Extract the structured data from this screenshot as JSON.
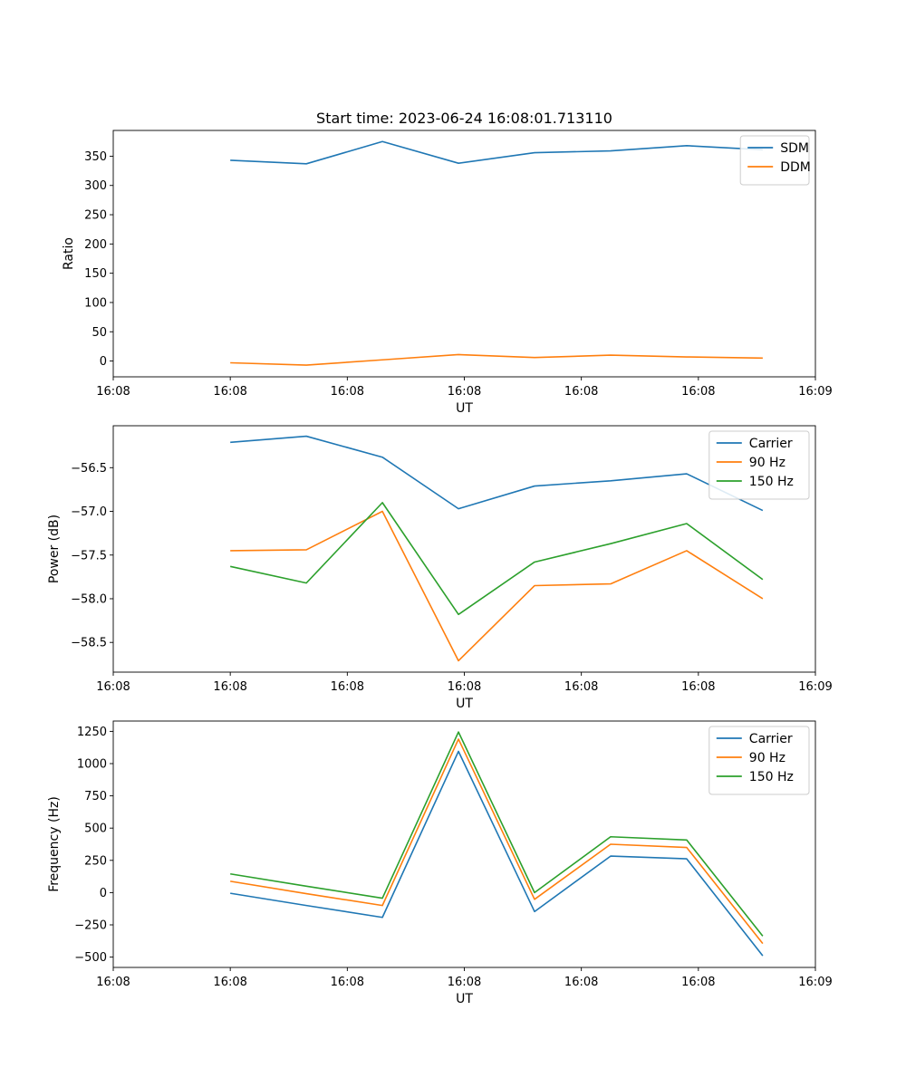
{
  "figure": {
    "title": "Start time: 2023-06-24 16:08:01.713110"
  },
  "chart_data": [
    {
      "type": "line",
      "title": "Start time: 2023-06-24 16:08:01.713110",
      "xlabel": "UT",
      "ylabel": "Ratio",
      "x": [
        1.0,
        1.65,
        2.3,
        2.95,
        3.6,
        4.25,
        4.9,
        5.55
      ],
      "xlim": [
        0.0,
        6.0
      ],
      "xticks": [
        0.0,
        1.0,
        2.0,
        3.0,
        4.0,
        5.0,
        6.0
      ],
      "xtick_labels": [
        "16:08",
        "16:08",
        "16:08",
        "16:08",
        "16:08",
        "16:08",
        "16:09"
      ],
      "ylim": [
        -27,
        394
      ],
      "yticks": [
        0,
        50,
        100,
        150,
        200,
        250,
        300,
        350
      ],
      "ytick_labels": [
        "0",
        "50",
        "100",
        "150",
        "200",
        "250",
        "300",
        "350"
      ],
      "legend": "top-right",
      "series": [
        {
          "name": "SDM",
          "color": "#1f77b4",
          "values": [
            343,
            337,
            375,
            338,
            356,
            359,
            368,
            361
          ]
        },
        {
          "name": "DDM",
          "color": "#ff7f0e",
          "values": [
            -3,
            -7,
            2,
            11,
            6,
            10,
            7,
            5
          ]
        }
      ]
    },
    {
      "type": "line",
      "xlabel": "UT",
      "ylabel": "Power (dB)",
      "x": [
        1.0,
        1.65,
        2.3,
        2.95,
        3.6,
        4.25,
        4.9,
        5.55
      ],
      "xlim": [
        0.0,
        6.0
      ],
      "xticks": [
        0.0,
        1.0,
        2.0,
        3.0,
        4.0,
        5.0,
        6.0
      ],
      "xtick_labels": [
        "16:08",
        "16:08",
        "16:08",
        "16:08",
        "16:08",
        "16:08",
        "16:09"
      ],
      "ylim": [
        -58.84,
        -56.02
      ],
      "yticks": [
        -58.5,
        -58.0,
        -57.5,
        -57.0,
        -56.5
      ],
      "ytick_labels": [
        "−58.5",
        "−58.0",
        "−57.5",
        "−57.0",
        "−56.5"
      ],
      "legend": "top-right",
      "series": [
        {
          "name": "Carrier",
          "color": "#1f77b4",
          "values": [
            -56.21,
            -56.14,
            -56.38,
            -56.97,
            -56.71,
            -56.65,
            -56.57,
            -56.99
          ]
        },
        {
          "name": "90 Hz",
          "color": "#ff7f0e",
          "values": [
            -57.45,
            -57.44,
            -57.0,
            -58.71,
            -57.85,
            -57.83,
            -57.45,
            -58.0
          ]
        },
        {
          "name": "150 Hz",
          "color": "#2ca02c",
          "values": [
            -57.63,
            -57.82,
            -56.9,
            -58.18,
            -57.58,
            -57.37,
            -57.14,
            -57.78
          ]
        }
      ]
    },
    {
      "type": "line",
      "xlabel": "UT",
      "ylabel": "Frequency (Hz)",
      "x": [
        1.0,
        1.65,
        2.3,
        2.95,
        3.6,
        4.25,
        4.9,
        5.55
      ],
      "xlim": [
        0.0,
        6.0
      ],
      "xticks": [
        0.0,
        1.0,
        2.0,
        3.0,
        4.0,
        5.0,
        6.0
      ],
      "xtick_labels": [
        "16:08",
        "16:08",
        "16:08",
        "16:08",
        "16:08",
        "16:08",
        "16:09"
      ],
      "ylim": [
        -580,
        1330
      ],
      "yticks": [
        -500,
        -250,
        0,
        250,
        500,
        750,
        1000,
        1250
      ],
      "ytick_labels": [
        "−500",
        "−250",
        "0",
        "250",
        "500",
        "750",
        "1000",
        "1250"
      ],
      "legend": "top-right",
      "series": [
        {
          "name": "Carrier",
          "color": "#1f77b4",
          "values": [
            -5,
            -100,
            -192,
            1095,
            -147,
            283,
            262,
            -490
          ]
        },
        {
          "name": "90 Hz",
          "color": "#ff7f0e",
          "values": [
            88,
            -8,
            -100,
            1190,
            -52,
            375,
            350,
            -395
          ]
        },
        {
          "name": "150 Hz",
          "color": "#2ca02c",
          "values": [
            145,
            50,
            -43,
            1245,
            0,
            433,
            408,
            -337
          ]
        }
      ]
    }
  ]
}
